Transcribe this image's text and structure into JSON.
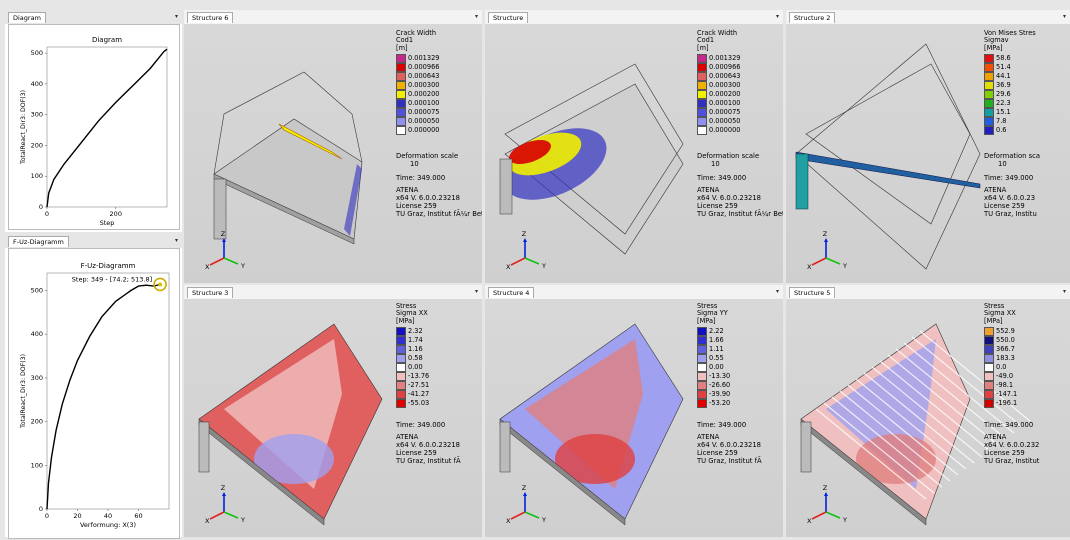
{
  "left_top": {
    "tab": "Diagram",
    "chart_data": {
      "type": "line",
      "title": "Diagram",
      "xlabel": "Step",
      "ylabel": "TotalReact_Dir3: DOF(3)",
      "xlim": [
        0,
        349
      ],
      "ylim": [
        0,
        520
      ],
      "xticks": [
        "0",
        "200"
      ],
      "yticks": [
        "0",
        "100",
        "200",
        "300",
        "400",
        "500"
      ],
      "x": [
        0,
        5,
        20,
        50,
        100,
        150,
        200,
        250,
        300,
        340,
        349
      ],
      "y": [
        0,
        45,
        90,
        140,
        210,
        280,
        340,
        395,
        450,
        505,
        513
      ]
    }
  },
  "left_bottom": {
    "tab": "F-Uz-Diagramm",
    "chart_data": {
      "type": "line",
      "title": "F-Uz-Diagramm",
      "xlabel": "Verformung: X(3)",
      "ylabel": "TotalReact_Dir3: DOF(3)",
      "annotation": "Step: 349 - [74.2; 513.8]",
      "xlim": [
        0,
        80
      ],
      "ylim": [
        0,
        540
      ],
      "xticks": [
        "0",
        "20",
        "40",
        "60"
      ],
      "yticks": [
        "0",
        "100",
        "200",
        "300",
        "400",
        "500"
      ],
      "x": [
        0,
        1,
        3,
        6,
        10,
        15,
        20,
        28,
        36,
        45,
        55,
        60,
        65,
        70,
        74.2
      ],
      "y": [
        0,
        60,
        120,
        180,
        240,
        295,
        340,
        395,
        440,
        475,
        500,
        510,
        512,
        510,
        513.8
      ]
    }
  },
  "panes": [
    {
      "tab": "Structure 6",
      "legend": [
        "Crack Width",
        "Cod1",
        "[m]"
      ],
      "scale_values": [
        "0.001329",
        "0.000966",
        "0.000643",
        "0.000300",
        "0.000200",
        "0.000100",
        "0.000075",
        "0.000050",
        "0.000000"
      ],
      "scale_colors": [
        "#c8288c",
        "#d80000",
        "#e06060",
        "#f0b000",
        "#f0f000",
        "#3030c0",
        "#5050e0",
        "#9090f0",
        "#ffffff"
      ],
      "info": [
        "Deformation scale",
        "10",
        "Time: 349.000",
        "ATENA",
        "x64 V. 6.0.0.23218",
        "License 259",
        "TU Graz, Institut fÃ¼r Bet"
      ]
    },
    {
      "tab": "Structure",
      "legend": [
        "Crack Width",
        "Cod1",
        "[m]"
      ],
      "scale_values": [
        "0.001329",
        "0.000966",
        "0.000643",
        "0.000300",
        "0.000200",
        "0.000100",
        "0.000075",
        "0.000050",
        "0.000000"
      ],
      "scale_colors": [
        "#c8288c",
        "#d80000",
        "#e06060",
        "#f0b000",
        "#f0f000",
        "#3030c0",
        "#5050e0",
        "#9090f0",
        "#ffffff"
      ],
      "info": [
        "Deformation scale",
        "10",
        "Time: 349.000",
        "ATENA",
        "x64 V. 6.0.0.23218",
        "License 259",
        "TU Graz, Institut fÃ¼r Bet"
      ]
    },
    {
      "tab": "Structure 2",
      "legend": [
        "Von Mises Stres",
        "Sigmav",
        "[MPa]"
      ],
      "scale_values": [
        "58.6",
        "51.4",
        "44.1",
        "36.9",
        "29.6",
        "22.3",
        "15.1",
        "7.8",
        "0.6"
      ],
      "scale_colors": [
        "#e01010",
        "#f05000",
        "#f0a000",
        "#e0e000",
        "#80d000",
        "#20b020",
        "#10a0a0",
        "#2060e0",
        "#2020c0"
      ],
      "info": [
        "Deformation sca",
        "10",
        "Time: 349.000",
        "ATENA",
        "x64 V. 6.0.0.23",
        "License 259",
        "TU Graz, Institu"
      ]
    },
    {
      "tab": "Structure 3",
      "legend": [
        "Stress",
        "Sigma XX",
        "[MPa]"
      ],
      "scale_values": [
        "2.32",
        "1.74",
        "1.16",
        "0.58",
        "0.00",
        "-13.76",
        "-27.51",
        "-41.27",
        "-55.03"
      ],
      "scale_colors": [
        "#1010c0",
        "#3030d0",
        "#6060e0",
        "#a0a0f0",
        "#ffffff",
        "#f0c0c0",
        "#e08080",
        "#e04040",
        "#e00000"
      ],
      "info": [
        "Time: 349.000",
        "ATENA",
        "x64 V. 6.0.0.23218",
        "License 259",
        "TU Graz, Institut fÃ"
      ]
    },
    {
      "tab": "Structure 4",
      "legend": [
        "Stress",
        "Sigma YY",
        "[MPa]"
      ],
      "scale_values": [
        "2.22",
        "1.66",
        "1.11",
        "0.55",
        "0.00",
        "-13.30",
        "-26.60",
        "-39.90",
        "-53.20"
      ],
      "scale_colors": [
        "#1010c0",
        "#3030d0",
        "#6060e0",
        "#a0a0f0",
        "#ffffff",
        "#f0c0c0",
        "#e08080",
        "#e04040",
        "#e00000"
      ],
      "info": [
        "Time: 349.000",
        "ATENA",
        "x64 V. 6.0.0.23218",
        "License 259",
        "TU Graz, Institut fÃ"
      ]
    },
    {
      "tab": "Structure 5",
      "legend": [
        "Stress",
        "Sigma XX",
        "[MPa]"
      ],
      "scale_values": [
        "552.9",
        "550.0",
        "366.7",
        "183.3",
        "0.0",
        "-49.0",
        "-98.1",
        "-147.1",
        "-196.1"
      ],
      "scale_colors": [
        "#f0a030",
        "#101080",
        "#4040c0",
        "#9090e0",
        "#ffffff",
        "#f0c0c0",
        "#e08080",
        "#e04040",
        "#d00000"
      ],
      "info": [
        "Time: 349.000",
        "ATENA",
        "x64 V. 6.0.0.232",
        "License 259",
        "TU Graz, Institut"
      ]
    }
  ],
  "axis_labels": {
    "x": "X",
    "y": "Y",
    "z": "Z"
  }
}
